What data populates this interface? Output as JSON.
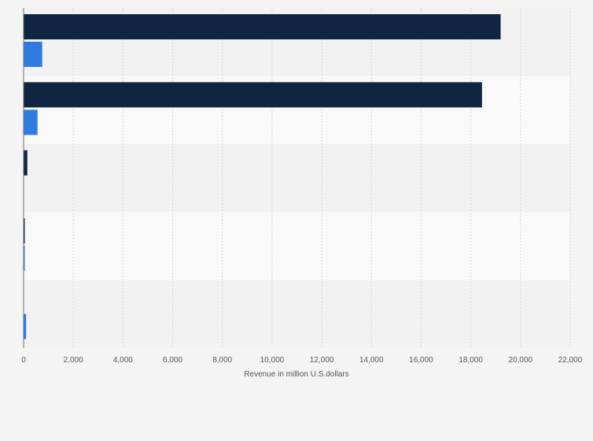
{
  "chart_data": {
    "type": "bar",
    "orientation": "horizontal",
    "title": "",
    "xlabel": "Revenue in million U.S.dollars",
    "ylabel": "",
    "xlim": [
      0,
      22000
    ],
    "x_ticks": [
      0,
      2000,
      4000,
      6000,
      8000,
      10000,
      12000,
      14000,
      16000,
      18000,
      20000,
      22000
    ],
    "x_tick_labels": [
      "0",
      "2,000",
      "4,000",
      "6,000",
      "8,000",
      "10,000",
      "12,000",
      "14,000",
      "16,000",
      "18,000",
      "20,000",
      "22,000"
    ],
    "grid": "vertical",
    "legend": "none",
    "categories": [
      "",
      "",
      "",
      "",
      ""
    ],
    "series": [
      {
        "color": "#0f2541",
        "values": [
          19200,
          18450,
          150,
          40,
          0
        ]
      },
      {
        "color": "#2f7ce0",
        "values": [
          750,
          560,
          0,
          30,
          100
        ]
      }
    ]
  }
}
